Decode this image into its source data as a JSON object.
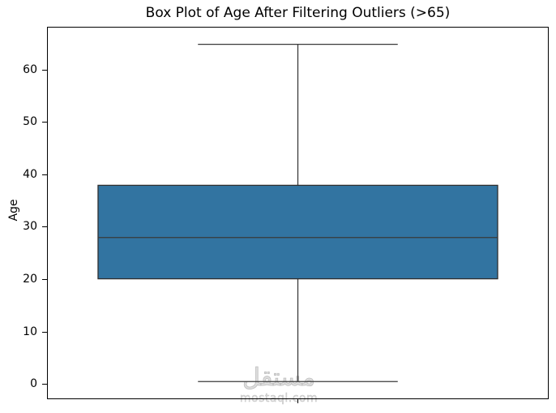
{
  "title": "Box Plot of Age After Filtering Outliers (>65)",
  "axes": {
    "ylabel": "Age",
    "yticks": [
      0,
      10,
      20,
      30,
      40,
      50,
      60
    ],
    "ylim": [
      -2.8,
      68.2
    ]
  },
  "chart_data": {
    "type": "box",
    "title": "Box Plot of Age After Filtering Outliers (>65)",
    "xlabel": "",
    "ylabel": "Age",
    "ylim": [
      -2.8,
      68.2
    ],
    "yticks": [
      0,
      10,
      20,
      30,
      40,
      50,
      60
    ],
    "orientation": "vertical",
    "grid": false,
    "series": [
      {
        "name": "Age",
        "min": 0.42,
        "q1": 20.1,
        "median": 28,
        "q3": 38,
        "max": 65,
        "outliers": []
      }
    ]
  },
  "watermark": {
    "text_arabic": "مستقل",
    "text_latin": "mostaql.com"
  },
  "colors": {
    "box_fill": "#3274a1",
    "box_edge": "#2e2e2e",
    "whisker": "#3a3a3a",
    "spine": "#000000",
    "watermark": "#cccccc"
  }
}
